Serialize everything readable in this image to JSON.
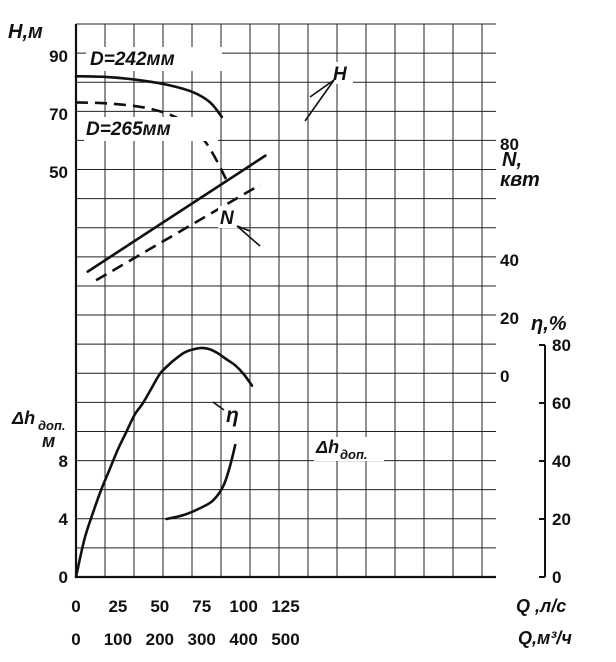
{
  "chart_data": {
    "type": "line",
    "axes": {
      "H": {
        "label": "H,м",
        "ticks": [
          50,
          70,
          90
        ]
      },
      "N": {
        "label1": "N,",
        "label2": "квт",
        "ticks": [
          0,
          20,
          40,
          80
        ]
      },
      "eta": {
        "label": "η,%",
        "ticks": [
          0,
          20,
          40,
          60,
          80
        ]
      },
      "dh": {
        "label1": "Δh",
        "label_sub": "доп.",
        "label2": "м",
        "ticks": [
          0,
          4,
          8
        ]
      },
      "Q_ls": {
        "label": "Q ,л/с",
        "ticks": [
          0,
          25,
          50,
          75,
          100,
          125
        ]
      },
      "Q_m3h": {
        "label": "Q,м³/ч",
        "ticks": [
          0,
          100,
          200,
          300,
          400,
          500
        ]
      }
    },
    "annotations": {
      "D242": "D=242мм",
      "D265": "D=265мм",
      "H": "H",
      "N": "N",
      "eta": "η",
      "dh_base": "Δh",
      "dh_sub": "доп."
    },
    "series": [
      {
        "id": "H_242",
        "axis": "H",
        "style": "solid",
        "x": [
          0,
          20,
          40,
          55,
          70,
          80,
          87
        ],
        "y": [
          83,
          82.7,
          81.5,
          80,
          77.5,
          74,
          69
        ]
      },
      {
        "id": "H_265",
        "axis": "H",
        "style": "dashed",
        "x": [
          0,
          20,
          40,
          55,
          65,
          75,
          82,
          90
        ],
        "y": [
          74,
          73.6,
          72.3,
          70,
          67,
          62,
          56,
          47
        ]
      },
      {
        "id": "N_242",
        "axis": "N",
        "style": "solid",
        "x": [
          7,
          113
        ],
        "y": [
          36,
          76
        ]
      },
      {
        "id": "N_265",
        "axis": "N",
        "style": "dashed",
        "x": [
          12,
          110
        ],
        "y": [
          33,
          66
        ]
      },
      {
        "id": "eta",
        "axis": "eta",
        "style": "solid",
        "x": [
          0,
          5,
          10,
          15,
          20,
          25,
          30,
          35,
          40,
          45,
          50,
          55,
          60,
          65,
          70,
          75,
          80,
          85,
          90,
          95,
          100,
          105
        ],
        "y": [
          0,
          13,
          22,
          30,
          37,
          44,
          50,
          56,
          60,
          65,
          70,
          73,
          75.5,
          77.5,
          78.5,
          79,
          78.5,
          77,
          75,
          73,
          70,
          66
        ]
      },
      {
        "id": "dh",
        "axis": "dh",
        "style": "solid",
        "x": [
          54,
          65,
          75,
          82,
          88,
          92,
          95
        ],
        "y": [
          4,
          4.3,
          4.8,
          5.3,
          6.3,
          7.7,
          9.1
        ]
      }
    ]
  }
}
